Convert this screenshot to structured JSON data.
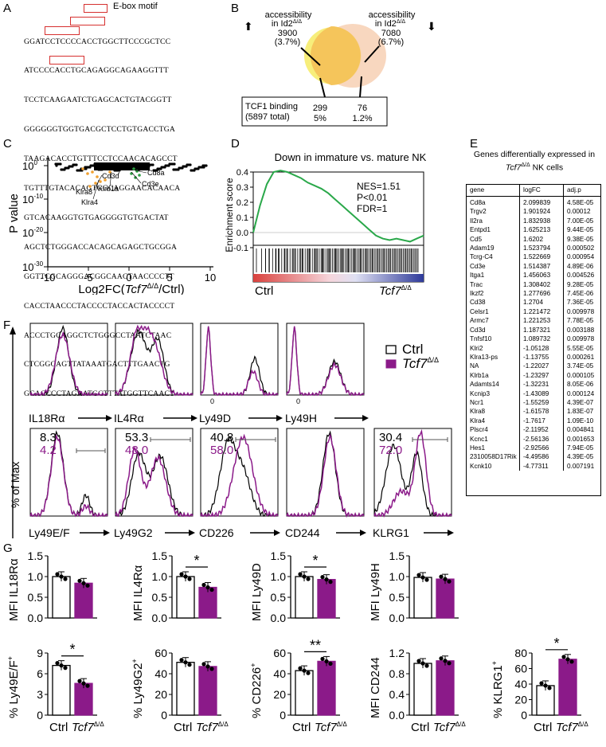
{
  "panels": {
    "A": "A",
    "B": "B",
    "C": "C",
    "D": "D",
    "E": "E",
    "F": "F",
    "G": "G"
  },
  "panelA": {
    "legend": "E-box motif",
    "sequence": [
      "GGATCCTCCCCACCTGGCTTCCCGCTCC",
      "ATCCCCACCTGCAGAGGCAGAAGGTTT",
      "TCCTCAAGAATCTGAGCACTGTACGGTT",
      "GGGGGGTGGTGACGCTCCTGTGACCTGA",
      "TAAGACACCTGTTTCCTCCAACACAGCCT",
      "TGTTTGTACACAGTGGCAGGAACACAACA",
      "GTCACAAGGTGTGAGGGGTGTGACTAT",
      "AGCTCTGGGACCACAGCAGAGCTGCGGA",
      "GGTTCGCAGGGACGGCAACTAACCCCTT",
      "CACCTAACCCTACCCCTACCACTACCCCT",
      "ACCCTGCAGGCTCTGGGCCTAATCTAAC",
      "CTCGGCAGTTATAAATGACTTTGAACTG",
      "GCACCCCTAGAATGCTTTATGGTTCAACT"
    ]
  },
  "panelB": {
    "left_label_1": "accessibility",
    "left_label_2": "in Id2",
    "left_count": "3900",
    "left_pct": "(3.7%)",
    "right_label_1": "accessibility",
    "right_label_2": "in Id2",
    "right_count": "7080",
    "right_pct": "(6.7%)",
    "superscript": "Δ/Δ",
    "box_label_1": "TCF1 binding",
    "box_label_2": "(5897 total)",
    "box_left_count": "299",
    "box_left_pct": "5%",
    "box_right_count": "76",
    "box_right_pct": "1.2%",
    "colors": {
      "left": "#f7ee7b",
      "right": "#f7d3b8",
      "overlap": "#f5c55b"
    }
  },
  "panelC": {
    "ylabel": "P value",
    "xlabel_pre": "Log2FC(",
    "xlabel_ital": "Tcf7",
    "xlabel_sup": "Δ/Δ",
    "xlabel_post": "/Ctrl)",
    "xticks": [
      "-10",
      "-5",
      "0",
      "5",
      "10"
    ],
    "yticks": [
      "10",
      "10",
      "10",
      "10"
    ],
    "ytick_exp": [
      "0",
      "-10",
      "-20",
      "-30"
    ],
    "genes_green": [
      "Cd8a",
      "Cd3d",
      "Cd3e"
    ],
    "genes_orange": [
      "Klrb1a",
      "Klra8",
      "Klra4"
    ],
    "colors": {
      "up": "#2ea043",
      "down": "#f0a030",
      "ns": "#000000"
    }
  },
  "chart_data": {
    "type": "line",
    "title": "Down in immature vs. mature NK",
    "ylabel": "Enrichment score",
    "yticks": [
      "0.4",
      "0.3",
      "0.2",
      "0.1",
      "0.0",
      "-0.1"
    ],
    "ylim": [
      -0.15,
      0.45
    ],
    "stats": [
      "NES=1.51",
      "P<0.01",
      "FDR=1"
    ],
    "x_left": "Ctrl",
    "x_right": "Tcf7",
    "x_right_sup": "Δ/Δ",
    "series": [
      {
        "values": [
          0.0,
          0.18,
          0.32,
          0.4,
          0.41,
          0.4,
          0.38,
          0.36,
          0.33,
          0.31,
          0.29,
          0.26,
          0.22,
          0.18,
          0.14,
          0.1,
          0.06,
          0.02,
          -0.02,
          -0.04,
          -0.05,
          -0.04,
          -0.05,
          -0.06,
          -0.04,
          -0.02
        ]
      }
    ],
    "line_color": "#2aa84a"
  },
  "panelE": {
    "title_1": "Genes differentially expressed in",
    "title_2_ital": "Tcf7",
    "title_2_sup": "Δ/Δ",
    "title_2_post": " NK cells",
    "headers": [
      "gene",
      "logFC",
      "adj.p"
    ],
    "rows": [
      [
        "Cd8a",
        "2.099839",
        "4.58E-05"
      ],
      [
        "Trgv2",
        "1.901924",
        "0.00012"
      ],
      [
        "Il2ra",
        "1.832938",
        "7.00E-05"
      ],
      [
        "Entpd1",
        "1.625213",
        "9.44E-05"
      ],
      [
        "Cd5",
        "1.6202",
        "9.38E-05"
      ],
      [
        "Adam19",
        "1.523794",
        "0.000502"
      ],
      [
        "Tcrg-C4",
        "1.522669",
        "0.000954"
      ],
      [
        "Cd3e",
        "1.514387",
        "4.89E-06"
      ],
      [
        "Itga1",
        "1.456063",
        "0.004526"
      ],
      [
        "Trac",
        "1.308402",
        "9.28E-05"
      ],
      [
        "Ikzf2",
        "1.277696",
        "7.45E-06"
      ],
      [
        "Cd38",
        "1.2704",
        "7.36E-05"
      ],
      [
        "Celsr1",
        "1.221472",
        "0.009978"
      ],
      [
        "Armc7",
        "1.221253",
        "7.78E-05"
      ],
      [
        "Cd3d",
        "1.187321",
        "0.003188"
      ],
      [
        "Tnfsf10",
        "1.089732",
        "0.009978"
      ],
      [
        "Klri2",
        "-1.05128",
        "5.55E-05"
      ],
      [
        "Klra13-ps",
        "-1.13755",
        "0.000261"
      ],
      [
        "NA",
        "-1.22027",
        "3.74E-05"
      ],
      [
        "Klrb1a",
        "-1.23297",
        "0.000105"
      ],
      [
        "Adamts14",
        "-1.32231",
        "8.05E-06"
      ],
      [
        "Kcnip3",
        "-1.43089",
        "0.000124"
      ],
      [
        "Ncr1",
        "-1.55259",
        "4.39E-07"
      ],
      [
        "Klra8",
        "-1.61578",
        "1.83E-07"
      ],
      [
        "Klra4",
        "-1.7617",
        "1.09E-10"
      ],
      [
        "Plscr4",
        "-2.11952",
        "0.004841"
      ],
      [
        "Kcnc1",
        "-2.56136",
        "0.001653"
      ],
      [
        "Hes1",
        "-2.92566",
        "7.94E-05"
      ],
      [
        "2310058D17Rik",
        "-4.49586",
        "4.39E-05"
      ],
      [
        "Kcnk10",
        "-4.77311",
        "0.007191"
      ]
    ]
  },
  "panelF": {
    "ylabel": "% of Max",
    "legend": [
      {
        "label": "Ctrl",
        "color": "#000000"
      },
      {
        "label": "Tcf7",
        "sup": "Δ/Δ",
        "color": "#8b1a89"
      }
    ],
    "top_markers": [
      "IL18Rα",
      "IL4Rα",
      "Ly49D",
      "Ly49H"
    ],
    "bottom_markers": [
      "Ly49E/F",
      "Ly49G2",
      "CD226",
      "CD244",
      "KLRG1"
    ],
    "zero_label": "0",
    "ctrl_pct": [
      "8.3",
      "53.3",
      "40.8",
      "",
      "30.4"
    ],
    "ko_pct": [
      "4.2",
      "48.0",
      "58.0",
      "",
      "72.0"
    ]
  },
  "panelG": {
    "group_ctrl": "Ctrl",
    "group_ko": "Tcf7",
    "group_ko_sup": "Δ/Δ",
    "colors": {
      "ctrl": "#ffffff",
      "ko": "#8b1a89"
    },
    "charts": [
      {
        "ylabel": "MFI IL18Rα",
        "yticks": [
          "0.0",
          "0.5",
          "1.0",
          "1.5"
        ],
        "ymax": 1.5,
        "ctrl": 1.0,
        "ko": 0.84,
        "sig": ""
      },
      {
        "ylabel": "MFI IL4Rα",
        "yticks": [
          "0.0",
          "0.5",
          "1.0",
          "1.5"
        ],
        "ymax": 1.5,
        "ctrl": 1.0,
        "ko": 0.74,
        "sig": "*"
      },
      {
        "ylabel": "MFI Ly49D",
        "yticks": [
          "0.0",
          "0.5",
          "1.0",
          "1.5"
        ],
        "ymax": 1.5,
        "ctrl": 1.0,
        "ko": 0.93,
        "sig": "*"
      },
      {
        "ylabel": "MFI Ly49H",
        "yticks": [
          "0.0",
          "0.5",
          "1.0",
          "1.5"
        ],
        "ymax": 1.5,
        "ctrl": 0.98,
        "ko": 0.94,
        "sig": ""
      },
      {
        "ylabel": "% Ly49E/F",
        "ysup": "+",
        "yticks": [
          "0",
          "3",
          "6",
          "9"
        ],
        "ymax": 9,
        "ctrl": 7.2,
        "ko": 4.6,
        "sig": "*"
      },
      {
        "ylabel": "% Ly49G2",
        "ysup": "+",
        "yticks": [
          "0",
          "20",
          "40",
          "60"
        ],
        "ymax": 60,
        "ctrl": 51,
        "ko": 47,
        "sig": ""
      },
      {
        "ylabel": "% CD226",
        "ysup": "+",
        "yticks": [
          "0",
          "20",
          "40",
          "60"
        ],
        "ymax": 60,
        "ctrl": 43,
        "ko": 52,
        "sig": "**"
      },
      {
        "ylabel": "MFI CD244",
        "yticks": [
          "0.0",
          "0.4",
          "0.8",
          "1.2"
        ],
        "ymax": 1.2,
        "ctrl": 1.0,
        "ko": 1.05,
        "sig": ""
      },
      {
        "ylabel": "% KLRG1",
        "ysup": "+",
        "yticks": [
          "0",
          "20",
          "40",
          "60",
          "80"
        ],
        "ymax": 80,
        "ctrl": 38,
        "ko": 72,
        "sig": "*"
      }
    ]
  }
}
